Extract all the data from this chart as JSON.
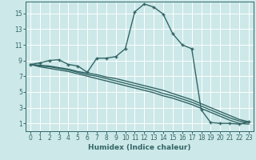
{
  "xlabel": "Humidex (Indice chaleur)",
  "bg_color": "#cce8e8",
  "grid_color": "#ffffff",
  "line_color": "#336666",
  "xlim": [
    -0.5,
    23.5
  ],
  "ylim": [
    0,
    16.5
  ],
  "xticks": [
    0,
    1,
    2,
    3,
    4,
    5,
    6,
    7,
    8,
    9,
    10,
    11,
    12,
    13,
    14,
    15,
    16,
    17,
    18,
    19,
    20,
    21,
    22,
    23
  ],
  "yticks": [
    1,
    3,
    5,
    7,
    9,
    11,
    13,
    15
  ],
  "lines": [
    {
      "x": [
        0,
        1,
        2,
        3,
        4,
        5,
        6,
        7,
        8,
        9,
        10,
        11,
        12,
        13,
        14,
        15,
        16,
        17,
        18,
        19,
        20,
        21,
        22,
        23
      ],
      "y": [
        8.5,
        8.7,
        9.0,
        9.1,
        8.5,
        8.3,
        7.5,
        9.3,
        9.3,
        9.5,
        10.5,
        15.2,
        16.2,
        15.8,
        14.9,
        12.4,
        11.0,
        10.5,
        2.7,
        1.1,
        1.0,
        1.0,
        0.9,
        1.2
      ],
      "marker": true
    },
    {
      "x": [
        0,
        1,
        2,
        3,
        4,
        5,
        6,
        7,
        8,
        9,
        10,
        11,
        12,
        13,
        14,
        15,
        16,
        17,
        18,
        19,
        20,
        21,
        22,
        23
      ],
      "y": [
        8.5,
        8.4,
        8.3,
        8.1,
        7.9,
        7.6,
        7.4,
        7.2,
        6.9,
        6.7,
        6.4,
        6.1,
        5.8,
        5.5,
        5.2,
        4.8,
        4.4,
        4.0,
        3.5,
        3.0,
        2.5,
        2.0,
        1.5,
        1.2
      ],
      "marker": false
    },
    {
      "x": [
        0,
        1,
        2,
        3,
        4,
        5,
        6,
        7,
        8,
        9,
        10,
        11,
        12,
        13,
        14,
        15,
        16,
        17,
        18,
        19,
        20,
        21,
        22,
        23
      ],
      "y": [
        8.5,
        8.3,
        8.2,
        8.0,
        7.8,
        7.5,
        7.2,
        7.0,
        6.7,
        6.4,
        6.1,
        5.8,
        5.5,
        5.2,
        4.8,
        4.5,
        4.1,
        3.7,
        3.2,
        2.7,
        2.2,
        1.7,
        1.3,
        1.1
      ],
      "marker": false
    },
    {
      "x": [
        0,
        1,
        2,
        3,
        4,
        5,
        6,
        7,
        8,
        9,
        10,
        11,
        12,
        13,
        14,
        15,
        16,
        17,
        18,
        19,
        20,
        21,
        22,
        23
      ],
      "y": [
        8.5,
        8.2,
        8.0,
        7.8,
        7.6,
        7.3,
        7.0,
        6.7,
        6.4,
        6.1,
        5.8,
        5.5,
        5.2,
        4.9,
        4.5,
        4.2,
        3.8,
        3.4,
        2.9,
        2.4,
        1.9,
        1.4,
        1.0,
        0.9
      ],
      "marker": false
    }
  ]
}
